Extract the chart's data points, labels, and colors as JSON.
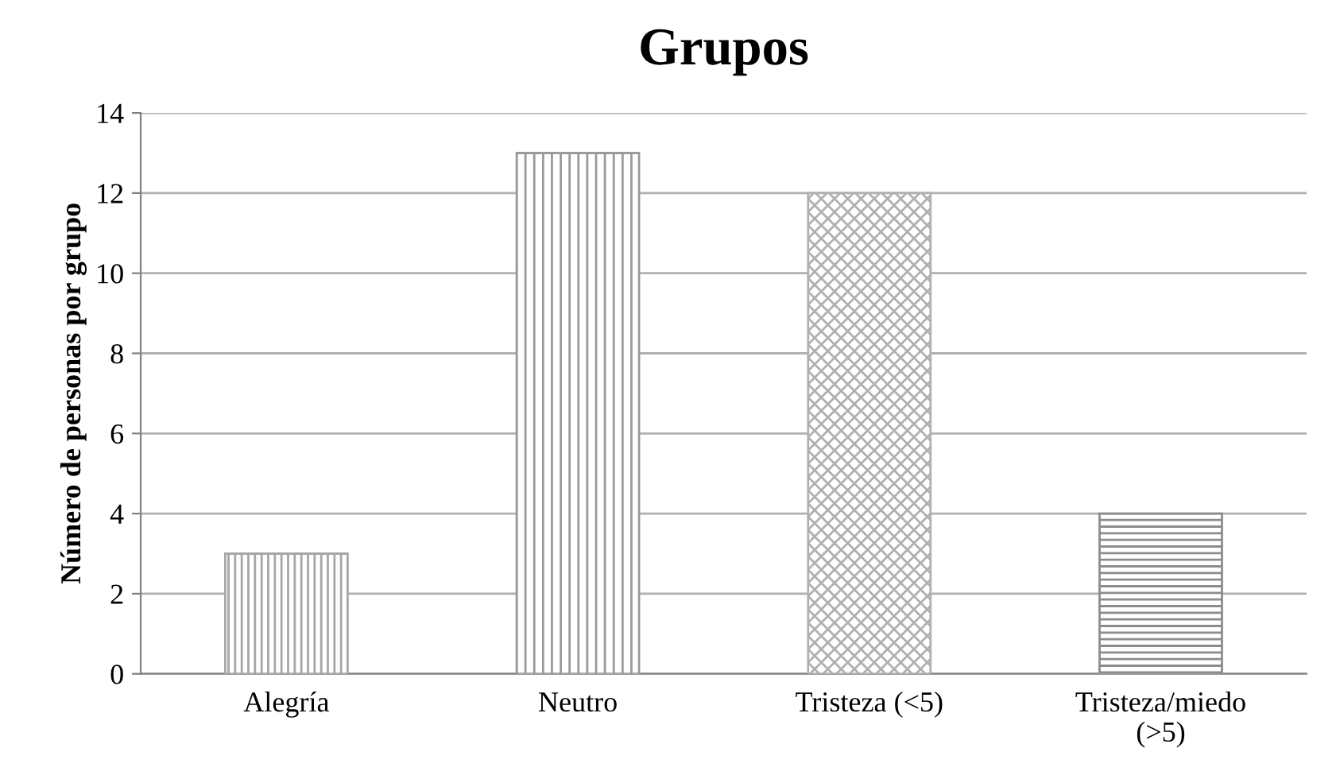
{
  "chart_data": {
    "type": "bar",
    "title": "Grupos",
    "ylabel": "Número de personas por grupo",
    "categories": [
      "Alegría",
      "Neutro",
      "Tristeza (<5)",
      "Tristeza/miedo\n(>5)"
    ],
    "values": [
      3,
      13,
      12,
      4
    ],
    "colors": [
      "#a6a6a6",
      "#9a9a9a",
      "#b0b0b0",
      "#8c8c8c"
    ],
    "ylim": [
      0,
      14
    ],
    "yticks": [
      0,
      2,
      4,
      6,
      8,
      10,
      12,
      14
    ],
    "grid": "y"
  }
}
